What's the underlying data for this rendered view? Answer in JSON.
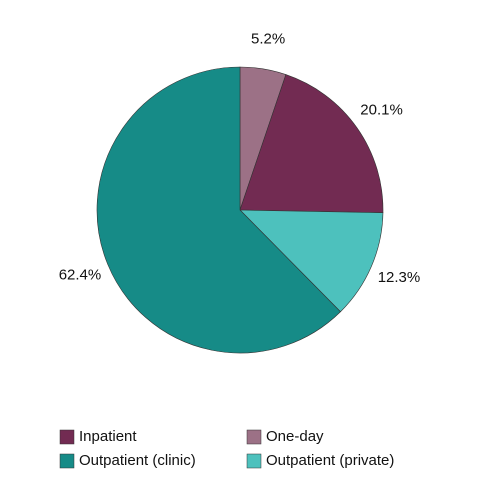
{
  "chart_data": {
    "type": "pie",
    "categories": [
      "Inpatient",
      "One-day",
      "Outpatient (clinic)",
      "Outpatient (private)"
    ],
    "values": [
      20.1,
      5.2,
      62.4,
      12.3
    ],
    "value_labels": [
      "20.1%",
      "5.2%",
      "62.4%",
      "12.3%"
    ],
    "colors": [
      "#722b52",
      "#9c7186",
      "#168b87",
      "#4dc1bd"
    ]
  }
}
